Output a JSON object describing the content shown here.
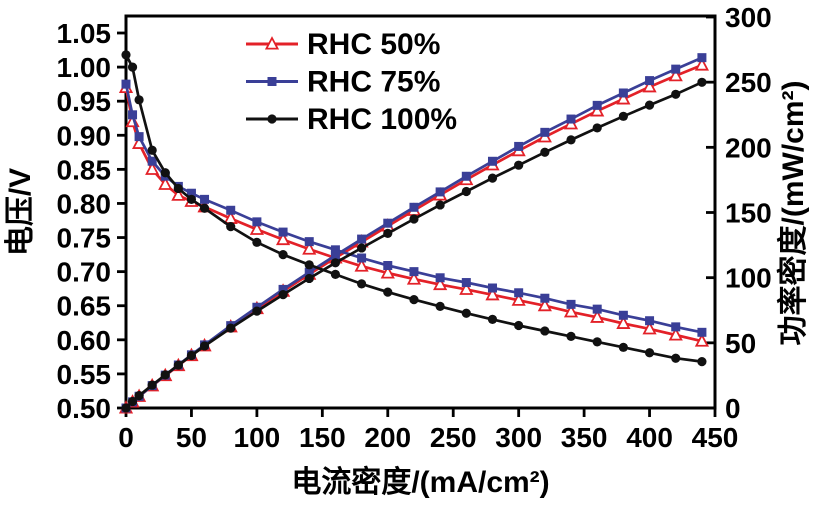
{
  "figure": {
    "background": "#ffffff",
    "frame_color": "#000000"
  },
  "chart_data": {
    "type": "line",
    "subtype": "dual-axis-polarization-and-power",
    "title": "",
    "grid": false,
    "x_axis": {
      "label": "电流密度/(mA/cm²)",
      "min": 0,
      "max": 450,
      "ticks": [
        0,
        50,
        100,
        150,
        200,
        250,
        300,
        350,
        400,
        450
      ]
    },
    "y_axis_left": {
      "label": "电压/V",
      "min": 0.5,
      "max": 1.05,
      "ticks": [
        0.5,
        0.55,
        0.6,
        0.65,
        0.7,
        0.75,
        0.8,
        0.85,
        0.9,
        0.95,
        1.0,
        1.05
      ]
    },
    "y_axis_right": {
      "label": "功率密度/(mW/cm²)",
      "min": 0,
      "max": 300,
      "ticks": [
        0,
        50,
        100,
        150,
        200,
        250,
        300
      ]
    },
    "legend": {
      "position": "top-inside",
      "items": [
        "RHC 50%",
        "RHC 75%",
        "RHC 100%"
      ]
    },
    "x": [
      0,
      5,
      10,
      20,
      30,
      40,
      50,
      60,
      80,
      100,
      120,
      140,
      160,
      180,
      200,
      220,
      240,
      260,
      280,
      300,
      320,
      340,
      360,
      380,
      400,
      420,
      440
    ],
    "series": [
      {
        "name": "RHC 50%",
        "color": "#e32128",
        "marker": "triangle-open",
        "voltage": [
          0.97,
          0.92,
          0.888,
          0.85,
          0.828,
          0.812,
          0.803,
          0.795,
          0.778,
          0.762,
          0.747,
          0.733,
          0.72,
          0.708,
          0.698,
          0.689,
          0.681,
          0.674,
          0.666,
          0.658,
          0.65,
          0.641,
          0.633,
          0.624,
          0.616,
          0.607,
          0.598
        ],
        "power": [
          0,
          4.6,
          8.9,
          17.0,
          24.8,
          32.5,
          40.2,
          47.7,
          62.2,
          76.2,
          89.6,
          102.6,
          115.2,
          127.4,
          139.6,
          151.6,
          163.4,
          175.2,
          186.5,
          197.4,
          208.0,
          218.0,
          227.9,
          237.1,
          246.4,
          254.9,
          263.1
        ]
      },
      {
        "name": "RHC 75%",
        "color": "#3a3f97",
        "marker": "square-filled",
        "voltage": [
          0.975,
          0.93,
          0.898,
          0.862,
          0.84,
          0.825,
          0.815,
          0.806,
          0.79,
          0.773,
          0.758,
          0.744,
          0.732,
          0.72,
          0.709,
          0.7,
          0.691,
          0.684,
          0.676,
          0.669,
          0.661,
          0.652,
          0.645,
          0.636,
          0.628,
          0.619,
          0.611
        ],
        "power": [
          0,
          4.7,
          9.0,
          17.2,
          25.2,
          33.0,
          40.8,
          48.4,
          63.2,
          77.3,
          91.0,
          104.2,
          117.1,
          129.6,
          141.8,
          154.0,
          165.8,
          177.8,
          189.3,
          200.7,
          211.5,
          221.7,
          232.2,
          241.7,
          251.2,
          260.0,
          268.8
        ]
      },
      {
        "name": "RHC 100%",
        "color": "#111111",
        "marker": "circle-filled",
        "voltage": [
          1.018,
          1.0,
          0.952,
          0.878,
          0.845,
          0.822,
          0.806,
          0.793,
          0.766,
          0.743,
          0.725,
          0.71,
          0.696,
          0.682,
          0.67,
          0.659,
          0.649,
          0.639,
          0.63,
          0.621,
          0.613,
          0.605,
          0.597,
          0.589,
          0.581,
          0.573,
          0.568
        ],
        "power": [
          0,
          5.0,
          9.5,
          17.6,
          25.4,
          32.9,
          40.3,
          47.6,
          61.3,
          74.3,
          87.0,
          99.4,
          111.4,
          122.8,
          134.0,
          145.0,
          155.8,
          166.1,
          176.4,
          186.3,
          196.2,
          205.7,
          214.9,
          223.8,
          232.4,
          240.7,
          249.9
        ]
      }
    ]
  }
}
